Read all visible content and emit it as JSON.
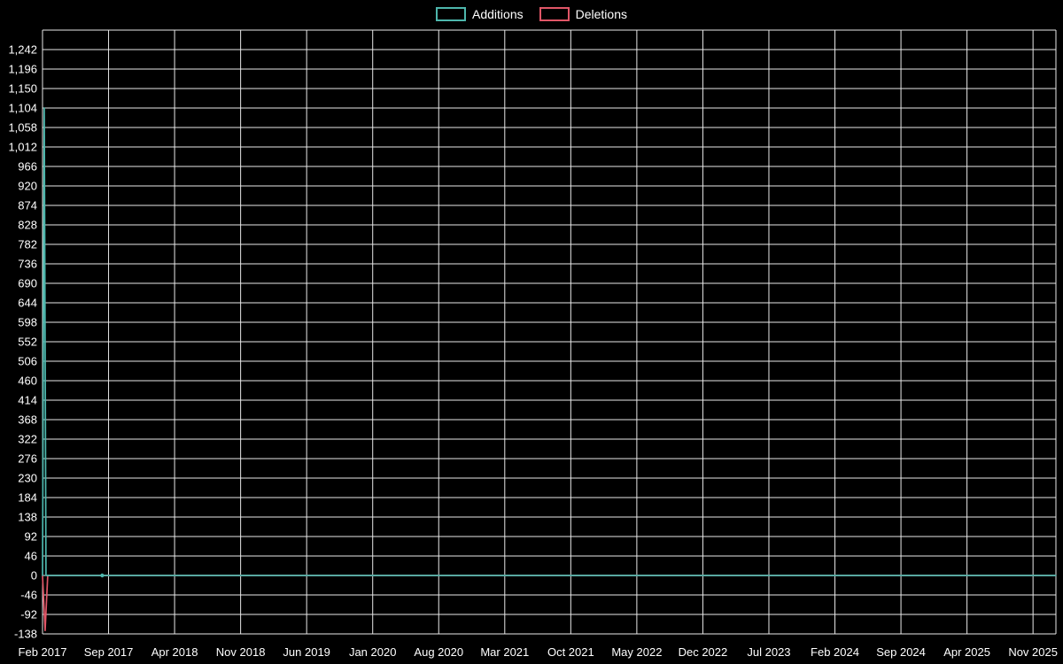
{
  "chart_data": {
    "type": "line",
    "title": "",
    "xlabel": "",
    "ylabel": "",
    "legend_position": "top-center",
    "background_color": "#000000",
    "grid_color": "#e8e8e8",
    "text_color": "#ffffff",
    "x_axis": {
      "unit": "weeks",
      "total_weeks": 467,
      "weeks_per_tick": 30.43,
      "tick_labels": [
        "Feb 2017",
        "Sep 2017",
        "Apr 2018",
        "Nov 2018",
        "Jun 2019",
        "Jan 2020",
        "Aug 2020",
        "Mar 2021",
        "Oct 2021",
        "May 2022",
        "Dec 2022",
        "Jul 2023",
        "Feb 2024",
        "Sep 2024",
        "Apr 2025",
        "Nov 2025"
      ]
    },
    "y_ticks": [
      -138,
      -92,
      -46,
      0,
      46,
      92,
      138,
      184,
      230,
      276,
      322,
      368,
      414,
      460,
      506,
      552,
      598,
      644,
      690,
      736,
      782,
      828,
      874,
      920,
      966,
      1012,
      1058,
      1104,
      1150,
      1196,
      1242
    ],
    "ylim": [
      -138,
      1288
    ],
    "series": [
      {
        "name": "Additions",
        "color": "#4db6ac",
        "points": [
          [
            0,
            0
          ],
          [
            0.8,
            1104
          ],
          [
            1.6,
            0
          ],
          [
            27.5,
            0
          ],
          [
            467,
            0
          ]
        ],
        "marker_points": [
          [
            27.5,
            0
          ]
        ]
      },
      {
        "name": "Deletions",
        "color": "#e05667",
        "points": [
          [
            0,
            0
          ],
          [
            1.2,
            -130
          ],
          [
            2.4,
            0
          ],
          [
            467,
            0
          ]
        ],
        "marker_points": []
      }
    ]
  }
}
